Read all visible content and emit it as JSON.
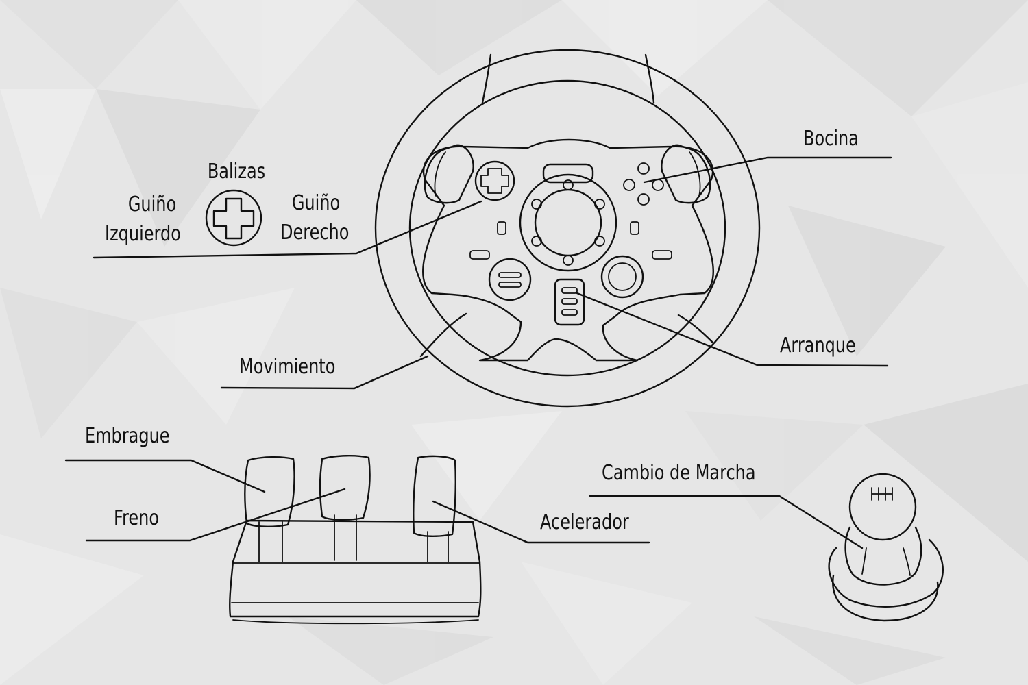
{
  "labels": {
    "balizas": "Balizas",
    "guino_izq_1": "Guiño",
    "guino_izq_2": "Izquierdo",
    "guino_der_1": "Guiño",
    "guino_der_2": "Derecho",
    "bocina": "Bocina",
    "arranque": "Arranque",
    "movimiento": "Movimiento",
    "embrague": "Embrague",
    "freno": "Freno",
    "acelerador": "Acelerador",
    "cambio_marcha": "Cambio de Marcha"
  },
  "colors": {
    "paper": "#e6e6e6",
    "ink": "#111111"
  }
}
